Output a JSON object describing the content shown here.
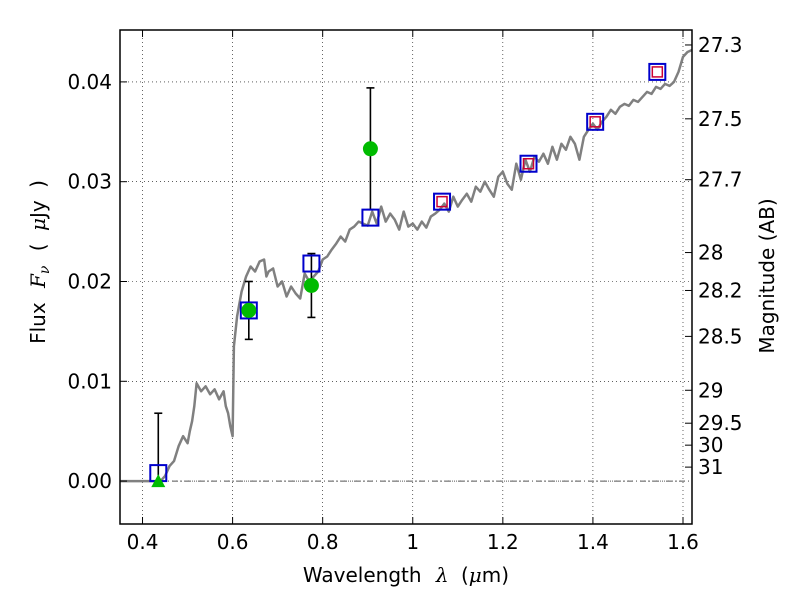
{
  "chart_data": {
    "type": "line",
    "xlabel": "Wavelength  λ (μm)",
    "xlabel_parts": {
      "text": "Wavelength",
      "symbol": "λ",
      "unit_open": "(",
      "unit_mu": "μ",
      "unit_rest": "m)"
    },
    "ylabel": "Flux  Fν ( μJy )",
    "ylabel_parts": {
      "text": "Flux",
      "symbol_F": "F",
      "symbol_sub": "ν",
      "open": "(",
      "mu": "μ",
      "rest": "Jy",
      "close": ")"
    },
    "y2label": "Magnitude (AB)",
    "xlim": [
      0.35,
      1.62
    ],
    "ylim": [
      -0.0043,
      0.0452
    ],
    "x_ticks": [
      0.4,
      0.6,
      0.8,
      1.0,
      1.2,
      1.4,
      1.6
    ],
    "x_tick_labels": [
      "0.4",
      "0.6",
      "0.8",
      "1",
      "1.2",
      "1.4",
      "1.6"
    ],
    "y_ticks": [
      0.0,
      0.01,
      0.02,
      0.03,
      0.04
    ],
    "y_tick_labels": [
      "0.00",
      "0.01",
      "0.02",
      "0.03",
      "0.04"
    ],
    "mag_ticks": [
      {
        "label": "27.3",
        "flux": 0.0437
      },
      {
        "label": "27.5",
        "flux": 0.0363
      },
      {
        "label": "27.7",
        "flux": 0.0302
      },
      {
        "label": "28",
        "flux": 0.0229
      },
      {
        "label": "28.2",
        "flux": 0.0191
      },
      {
        "label": "28.5",
        "flux": 0.0145
      },
      {
        "label": "29",
        "flux": 0.0091
      },
      {
        "label": "29.5",
        "flux": 0.0058
      },
      {
        "label": "30",
        "flux": 0.0036
      },
      {
        "label": "31",
        "flux": 0.0014
      }
    ],
    "grid": true,
    "zero_line": true,
    "model_spectrum": [
      [
        0.35,
        0.0
      ],
      [
        0.4,
        0.0
      ],
      [
        0.44,
        0.0
      ],
      [
        0.45,
        0.0005
      ],
      [
        0.46,
        0.0015
      ],
      [
        0.47,
        0.002
      ],
      [
        0.48,
        0.0035
      ],
      [
        0.49,
        0.0045
      ],
      [
        0.5,
        0.0038
      ],
      [
        0.505,
        0.005
      ],
      [
        0.51,
        0.006
      ],
      [
        0.515,
        0.0075
      ],
      [
        0.52,
        0.0098
      ],
      [
        0.53,
        0.009
      ],
      [
        0.54,
        0.0095
      ],
      [
        0.55,
        0.0087
      ],
      [
        0.56,
        0.0092
      ],
      [
        0.57,
        0.0082
      ],
      [
        0.58,
        0.009
      ],
      [
        0.585,
        0.0075
      ],
      [
        0.59,
        0.0068
      ],
      [
        0.595,
        0.0055
      ],
      [
        0.6,
        0.0045
      ],
      [
        0.603,
        0.0135
      ],
      [
        0.61,
        0.0165
      ],
      [
        0.62,
        0.019
      ],
      [
        0.63,
        0.0205
      ],
      [
        0.64,
        0.0215
      ],
      [
        0.65,
        0.021
      ],
      [
        0.66,
        0.022
      ],
      [
        0.67,
        0.0222
      ],
      [
        0.675,
        0.0205
      ],
      [
        0.68,
        0.021
      ],
      [
        0.69,
        0.0213
      ],
      [
        0.7,
        0.0195
      ],
      [
        0.71,
        0.02
      ],
      [
        0.72,
        0.0185
      ],
      [
        0.73,
        0.0195
      ],
      [
        0.74,
        0.0188
      ],
      [
        0.75,
        0.0183
      ],
      [
        0.76,
        0.0208
      ],
      [
        0.77,
        0.02
      ],
      [
        0.78,
        0.0205
      ],
      [
        0.79,
        0.021
      ],
      [
        0.8,
        0.0222
      ],
      [
        0.81,
        0.0225
      ],
      [
        0.82,
        0.0232
      ],
      [
        0.83,
        0.0238
      ],
      [
        0.84,
        0.0245
      ],
      [
        0.85,
        0.024
      ],
      [
        0.86,
        0.0252
      ],
      [
        0.87,
        0.0255
      ],
      [
        0.88,
        0.026
      ],
      [
        0.89,
        0.0258
      ],
      [
        0.9,
        0.0256
      ],
      [
        0.91,
        0.027
      ],
      [
        0.92,
        0.0258
      ],
      [
        0.93,
        0.0275
      ],
      [
        0.94,
        0.026
      ],
      [
        0.95,
        0.0268
      ],
      [
        0.96,
        0.0262
      ],
      [
        0.97,
        0.0252
      ],
      [
        0.98,
        0.027
      ],
      [
        0.99,
        0.0255
      ],
      [
        1.0,
        0.0258
      ],
      [
        1.01,
        0.0252
      ],
      [
        1.02,
        0.026
      ],
      [
        1.03,
        0.0254
      ],
      [
        1.04,
        0.0265
      ],
      [
        1.05,
        0.0268
      ],
      [
        1.06,
        0.0272
      ],
      [
        1.07,
        0.0278
      ],
      [
        1.08,
        0.027
      ],
      [
        1.09,
        0.0285
      ],
      [
        1.1,
        0.0275
      ],
      [
        1.11,
        0.0282
      ],
      [
        1.12,
        0.0288
      ],
      [
        1.13,
        0.028
      ],
      [
        1.14,
        0.0295
      ],
      [
        1.15,
        0.029
      ],
      [
        1.16,
        0.03
      ],
      [
        1.17,
        0.0292
      ],
      [
        1.18,
        0.0285
      ],
      [
        1.19,
        0.0305
      ],
      [
        1.2,
        0.031
      ],
      [
        1.21,
        0.0298
      ],
      [
        1.22,
        0.0292
      ],
      [
        1.23,
        0.0318
      ],
      [
        1.24,
        0.0302
      ],
      [
        1.25,
        0.0322
      ],
      [
        1.26,
        0.031
      ],
      [
        1.27,
        0.0325
      ],
      [
        1.28,
        0.032
      ],
      [
        1.29,
        0.0328
      ],
      [
        1.3,
        0.0318
      ],
      [
        1.31,
        0.0335
      ],
      [
        1.32,
        0.0322
      ],
      [
        1.33,
        0.0338
      ],
      [
        1.34,
        0.0332
      ],
      [
        1.35,
        0.0345
      ],
      [
        1.36,
        0.0338
      ],
      [
        1.37,
        0.0322
      ],
      [
        1.38,
        0.0345
      ],
      [
        1.39,
        0.0352
      ],
      [
        1.4,
        0.0358
      ],
      [
        1.41,
        0.0352
      ],
      [
        1.42,
        0.036
      ],
      [
        1.43,
        0.0365
      ],
      [
        1.44,
        0.0372
      ],
      [
        1.45,
        0.0368
      ],
      [
        1.46,
        0.0375
      ],
      [
        1.47,
        0.0378
      ],
      [
        1.48,
        0.0376
      ],
      [
        1.49,
        0.0382
      ],
      [
        1.5,
        0.038
      ],
      [
        1.51,
        0.0385
      ],
      [
        1.52,
        0.039
      ],
      [
        1.53,
        0.0388
      ],
      [
        1.54,
        0.0395
      ],
      [
        1.55,
        0.0393
      ],
      [
        1.56,
        0.0398
      ],
      [
        1.57,
        0.0396
      ],
      [
        1.58,
        0.04
      ],
      [
        1.59,
        0.041
      ],
      [
        1.6,
        0.0425
      ],
      [
        1.61,
        0.043
      ],
      [
        1.62,
        0.0432
      ]
    ],
    "synthetic_points": [
      {
        "x": 0.435,
        "y": 0.0008
      },
      {
        "x": 0.636,
        "y": 0.0171
      },
      {
        "x": 0.775,
        "y": 0.0218
      },
      {
        "x": 0.906,
        "y": 0.0264
      },
      {
        "x": 1.065,
        "y": 0.028
      },
      {
        "x": 1.257,
        "y": 0.0318
      },
      {
        "x": 1.405,
        "y": 0.036
      },
      {
        "x": 1.543,
        "y": 0.041
      }
    ],
    "nir_points": [
      {
        "x": 1.065,
        "y": 0.028
      },
      {
        "x": 1.257,
        "y": 0.0318
      },
      {
        "x": 1.405,
        "y": 0.036
      },
      {
        "x": 1.543,
        "y": 0.041
      }
    ],
    "measurements": [
      {
        "x": 0.636,
        "y": 0.0171,
        "err_low": 0.0029,
        "err_high": 0.0029
      },
      {
        "x": 0.775,
        "y": 0.0196,
        "err_low": 0.0032,
        "err_high": 0.0032
      },
      {
        "x": 0.906,
        "y": 0.0333,
        "err_low": 0.0061,
        "err_high": 0.0061
      }
    ],
    "upper_limit": {
      "x": 0.435,
      "y": 0.0,
      "err_high": 0.0068
    },
    "colors": {
      "model": "#808080",
      "synthetic": "#0000cc",
      "nir": "#cc0033",
      "measured": "#00bb00",
      "limit": "#00bb00",
      "error": "#000000",
      "zero": "#555555"
    }
  }
}
